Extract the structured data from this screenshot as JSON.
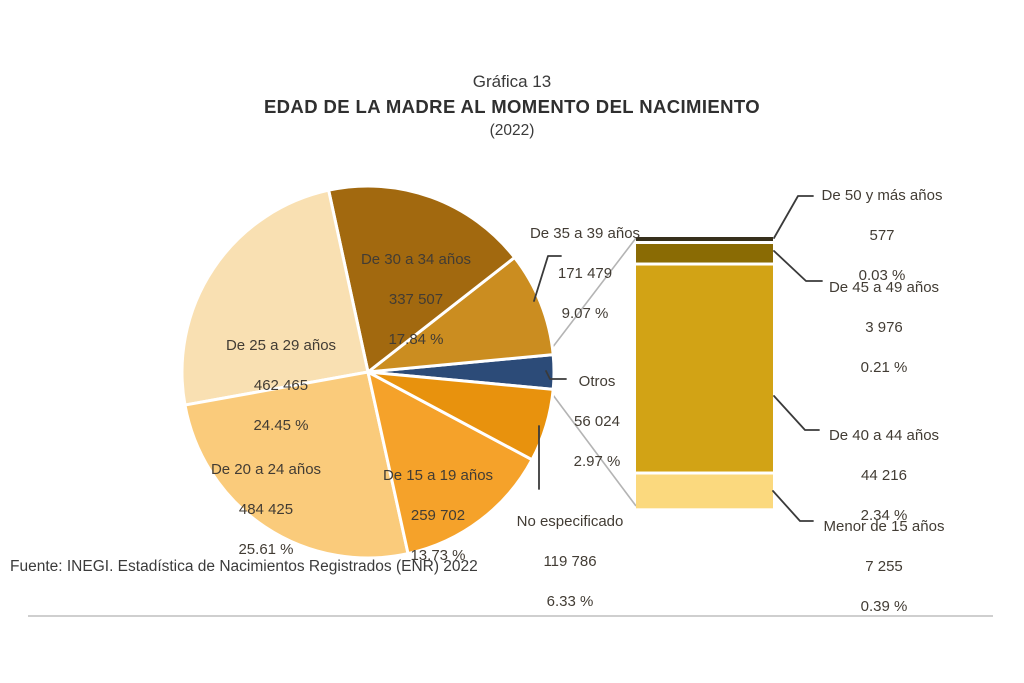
{
  "header": {
    "figure_label": "Gráfica 13",
    "title": "EDAD DE LA MADRE AL MOMENTO DEL NACIMIENTO",
    "subtitle": "(2022)"
  },
  "source": {
    "text": "Fuente: INEGI. Estadística de Nacimientos Registrados (ENR) 2022"
  },
  "chart_data": {
    "type": "pie",
    "title": "Gráfica 13 — EDAD DE LA MADRE AL MOMENTO DEL NACIMIENTO (2022)",
    "legend_position": "none",
    "pie_slices": [
      {
        "label": "Otros",
        "value": 56024,
        "value_text": "56 024",
        "pct": 2.97,
        "pct_text": "2.97 %",
        "color": "#2C4B78"
      },
      {
        "label": "De 35 a 39 años",
        "value": 171479,
        "value_text": "171 479",
        "pct": 9.07,
        "pct_text": "9.07 %",
        "color": "#CB8D20"
      },
      {
        "label": "De 30 a 34 años",
        "value": 337507,
        "value_text": "337 507",
        "pct": 17.84,
        "pct_text": "17.84 %",
        "color": "#A2690F"
      },
      {
        "label": "De 25 a 29 años",
        "value": 462465,
        "value_text": "462 465",
        "pct": 24.45,
        "pct_text": "24.45 %",
        "color": "#F9E0B2"
      },
      {
        "label": "De 20 a 24 años",
        "value": 484425,
        "value_text": "484 425",
        "pct": 25.61,
        "pct_text": "25.61 %",
        "color": "#FACB7B"
      },
      {
        "label": "De 15 a 19 años",
        "value": 259702,
        "value_text": "259 702",
        "pct": 13.73,
        "pct_text": "13.73 %",
        "color": "#F5A22A"
      },
      {
        "label": "No especificado",
        "value": 119786,
        "value_text": "119 786",
        "pct": 6.33,
        "pct_text": "6.33 %",
        "color": "#E8920D"
      }
    ],
    "bar_breakout": {
      "of_slice": "Otros",
      "segments": [
        {
          "label": "De 50 y más años",
          "value": 577,
          "value_text": "577",
          "pct_text": "0.03 %",
          "color": "#37301C"
        },
        {
          "label": "De 45 a 49 años",
          "value": 3976,
          "value_text": "3 976",
          "pct_text": "0.21 %",
          "color": "#8A6B04"
        },
        {
          "label": "De 40 a 44 años",
          "value": 44216,
          "value_text": "44 216",
          "pct_text": "2.34 %",
          "color": "#D2A315"
        },
        {
          "label": "Menor de 15 años",
          "value": 7255,
          "value_text": "7 255",
          "pct_text": "0.39 %",
          "color": "#FBD97E"
        }
      ]
    }
  }
}
